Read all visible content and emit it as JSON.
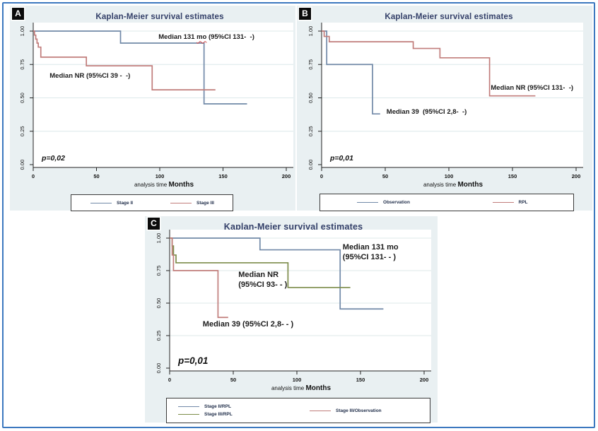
{
  "figure": {
    "border_color": "#3c78bf",
    "panel_background": "#e9f0f2",
    "plot_background": "#ffffff",
    "grid_color": "#dce8ea",
    "title_color": "#344069"
  },
  "chart_data": [
    {
      "type": "line",
      "panel_label": "A",
      "title": "Kaplan-Meier survival estimates",
      "p_value": "p=0,02",
      "xlabel_prefix": "analysis time",
      "xlabel_main": "Months",
      "xlim": [
        0,
        200
      ],
      "ylim": [
        0,
        1
      ],
      "x_ticks": [
        0,
        50,
        100,
        150,
        200
      ],
      "y_ticks": [
        0,
        0.25,
        0.5,
        0.75,
        1
      ],
      "y_tick_labels": [
        "0.00",
        "0.25",
        "0.50",
        "0.75",
        "1.00"
      ],
      "grid": "horizontal",
      "legend_position": "bottom",
      "series": [
        {
          "name": "Stage II",
          "color": "#7189a8",
          "points": [
            [
              0,
              1
            ],
            [
              69,
              1
            ],
            [
              69,
              0.91
            ],
            [
              135,
              0.91
            ],
            [
              135,
              0.455
            ],
            [
              169,
              0.455
            ]
          ]
        },
        {
          "name": "Stage III",
          "color": "#c17d7b",
          "points": [
            [
              0,
              1
            ],
            [
              1,
              1
            ],
            [
              1,
              0.97
            ],
            [
              2,
              0.97
            ],
            [
              2,
              0.94
            ],
            [
              3,
              0.94
            ],
            [
              3,
              0.91
            ],
            [
              4,
              0.91
            ],
            [
              4,
              0.88
            ],
            [
              6,
              0.88
            ],
            [
              6,
              0.805
            ],
            [
              42,
              0.805
            ],
            [
              42,
              0.74
            ],
            [
              94,
              0.74
            ],
            [
              94,
              0.56
            ],
            [
              144,
              0.56
            ]
          ]
        }
      ],
      "annotations": [
        {
          "x": 99,
          "y": 0.945,
          "lines": [
            [
              {
                "t": "Median 131 "
              },
              {
                "t": "mo",
                "wavy": true
              },
              {
                "t": " (95%CI 131-  -)"
              }
            ]
          ]
        },
        {
          "x": 13,
          "y": 0.655,
          "lines": [
            [
              {
                "t": "Median NR (95%CI 39 -  -)"
              }
            ]
          ]
        }
      ],
      "legend_columns": [
        [
          {
            "label": "Stage II",
            "color": "#7189a8"
          }
        ],
        [
          {
            "label": "Stage III",
            "color": "#c17d7b"
          }
        ]
      ]
    },
    {
      "type": "line",
      "panel_label": "B",
      "title": "Kaplan-Meier survival estimates",
      "p_value": "p=0,01",
      "xlabel_prefix": "analysis time",
      "xlabel_main": "Months",
      "xlim": [
        0,
        200
      ],
      "ylim": [
        0,
        1
      ],
      "x_ticks": [
        0,
        50,
        100,
        150,
        200
      ],
      "y_ticks": [
        0,
        0.25,
        0.5,
        0.75,
        1
      ],
      "y_tick_labels": [
        "0.00",
        "0.25",
        "0.50",
        "0.75",
        "1.00"
      ],
      "grid": "horizontal",
      "legend_position": "bottom",
      "series": [
        {
          "name": "Observation",
          "color": "#7189a8",
          "points": [
            [
              0,
              1
            ],
            [
              4,
              1
            ],
            [
              4,
              0.75
            ],
            [
              40,
              0.75
            ],
            [
              40,
              0.38
            ],
            [
              46,
              0.38
            ]
          ]
        },
        {
          "name": "RPL",
          "color": "#c17d7b",
          "points": [
            [
              0,
              1
            ],
            [
              2,
              1
            ],
            [
              2,
              0.96
            ],
            [
              6,
              0.96
            ],
            [
              6,
              0.92
            ],
            [
              72,
              0.92
            ],
            [
              72,
              0.87
            ],
            [
              93,
              0.87
            ],
            [
              93,
              0.8
            ],
            [
              132,
              0.8
            ],
            [
              132,
              0.515
            ],
            [
              168,
              0.515
            ]
          ]
        }
      ],
      "annotations": [
        {
          "x": 133,
          "y": 0.565,
          "lines": [
            [
              {
                "t": "Median NR (95%CI 131-  -)"
              }
            ]
          ]
        },
        {
          "x": 51,
          "y": 0.385,
          "lines": [
            [
              {
                "t": "Median 39  (95%CI 2,8-  -)"
              }
            ]
          ]
        }
      ],
      "legend_columns": [
        [
          {
            "label": "Observation",
            "color": "#7189a8"
          }
        ],
        [
          {
            "label": "RPL",
            "color": "#c17d7b"
          }
        ]
      ]
    },
    {
      "type": "line",
      "panel_label": "C",
      "title": "Kaplan-Meier survival estimates",
      "p_value": "p=0,01",
      "xlabel_prefix": "analysis time",
      "xlabel_main": "Months",
      "xlim": [
        0,
        200
      ],
      "ylim": [
        0,
        1
      ],
      "x_ticks": [
        0,
        50,
        100,
        150,
        200
      ],
      "y_ticks": [
        0,
        0.25,
        0.5,
        0.75,
        1
      ],
      "y_tick_labels": [
        "0.00",
        "0.25",
        "0.50",
        "0.75",
        "1.00"
      ],
      "grid": "horizontal",
      "legend_position": "bottom",
      "series": [
        {
          "name": "Stage II/RPL",
          "color": "#7189a8",
          "points": [
            [
              0,
              1
            ],
            [
              71,
              1
            ],
            [
              71,
              0.91
            ],
            [
              134,
              0.91
            ],
            [
              134,
              0.455
            ],
            [
              168,
              0.455
            ]
          ]
        },
        {
          "name": "Stage III/RPL",
          "color": "#7c8c49",
          "points": [
            [
              0,
              1
            ],
            [
              2,
              1
            ],
            [
              2,
              0.94
            ],
            [
              3,
              0.94
            ],
            [
              3,
              0.87
            ],
            [
              5,
              0.87
            ],
            [
              5,
              0.81
            ],
            [
              93,
              0.81
            ],
            [
              93,
              0.62
            ],
            [
              142,
              0.62
            ]
          ]
        },
        {
          "name": "Stage III/Observation",
          "color": "#c17d7b",
          "points": [
            [
              0,
              1
            ],
            [
              2,
              1
            ],
            [
              2,
              0.87
            ],
            [
              3,
              0.87
            ],
            [
              3,
              0.75
            ],
            [
              38,
              0.75
            ],
            [
              38,
              0.39
            ],
            [
              46,
              0.39
            ]
          ]
        }
      ],
      "annotations": [
        {
          "x": 136,
          "y": 0.93,
          "lines": [
            [
              {
                "t": "Median 131 mo"
              }
            ],
            [
              {
                "t": "(95%CI 131- - )"
              }
            ]
          ]
        },
        {
          "x": 54,
          "y": 0.72,
          "lines": [
            [
              {
                "t": "Median NR"
              }
            ],
            [
              {
                "t": "(95%CI 93- - )"
              }
            ]
          ]
        },
        {
          "x": 26,
          "y": 0.335,
          "lines": [
            [
              {
                "t": "Median 39 (95%CI 2,8- - )"
              }
            ]
          ]
        }
      ],
      "legend_columns": [
        [
          {
            "label": "Stage II/RPL",
            "color": "#7189a8"
          },
          {
            "label": "Stage III/RPL",
            "color": "#7c8c49"
          }
        ],
        [
          {
            "label": "Stage III/Observation",
            "color": "#c17d7b"
          }
        ]
      ]
    }
  ]
}
